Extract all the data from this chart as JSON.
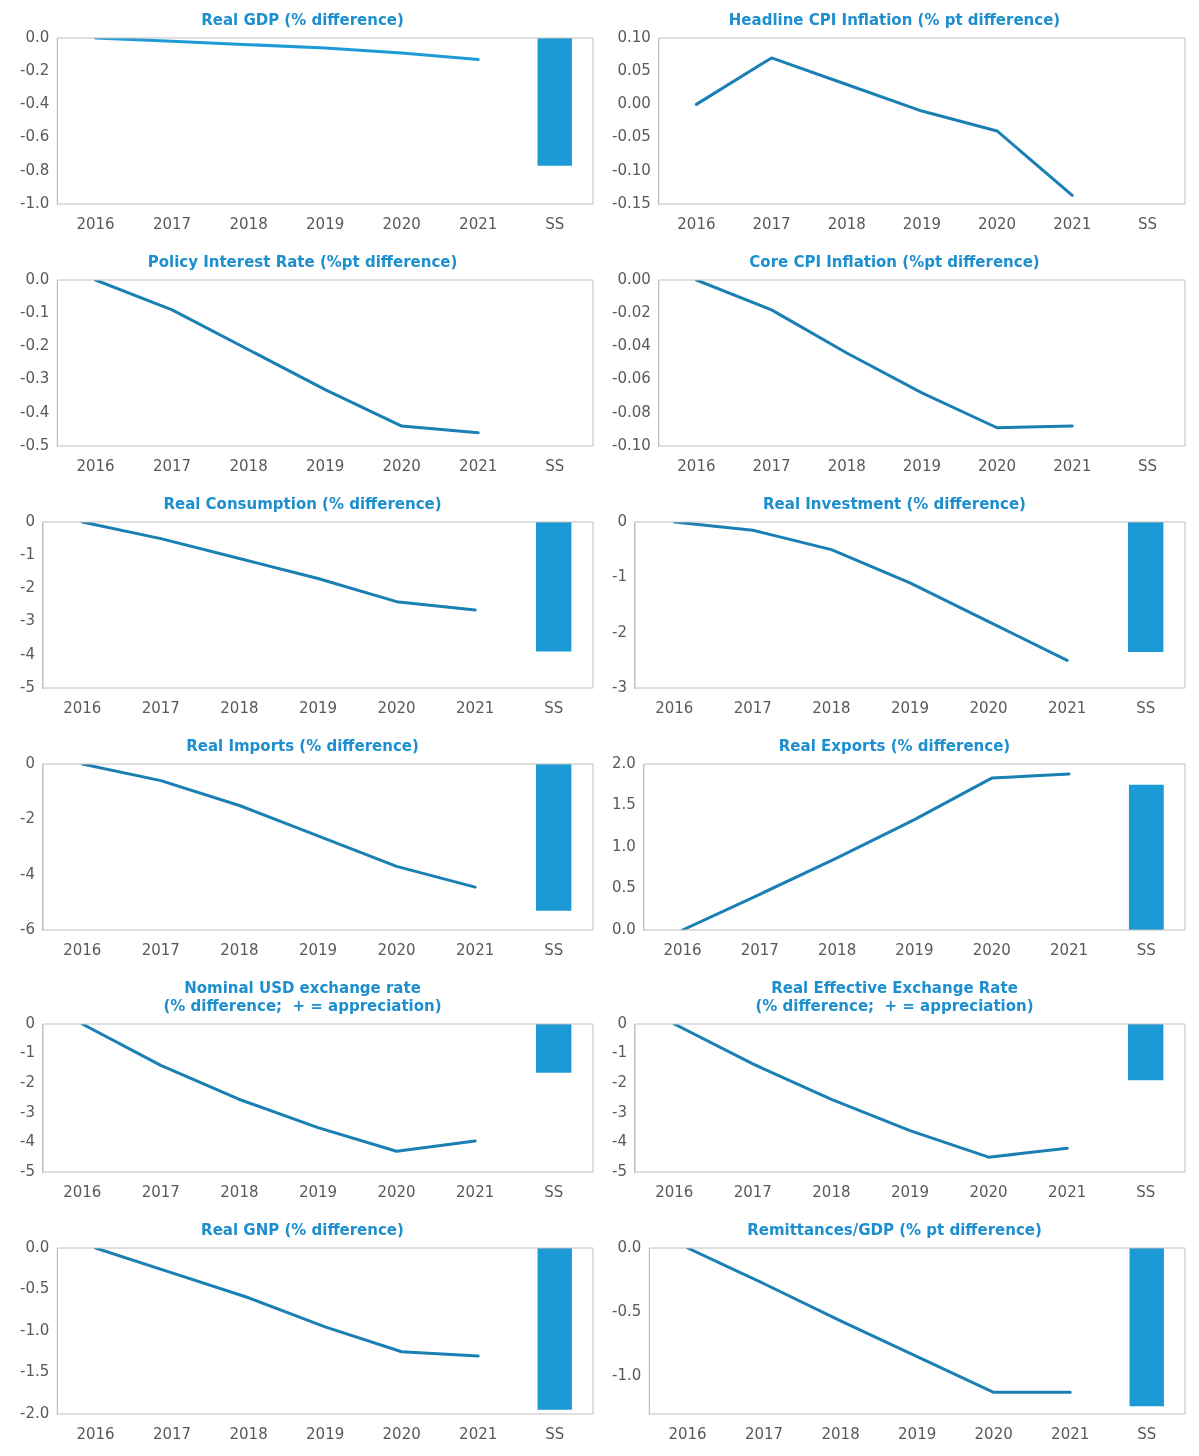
{
  "chart_data": [
    {
      "type": "line",
      "title": "Real GDP (% difference)",
      "categories": [
        "2016",
        "2017",
        "2018",
        "2019",
        "2020",
        "2021",
        "SS"
      ],
      "ylim": [
        -1.0,
        0.0
      ],
      "yticks": [
        {
          "value": 0,
          "label": "0.0"
        },
        {
          "value": -0.2,
          "label": "-0.2"
        },
        {
          "value": -0.4,
          "label": "-0.4"
        },
        {
          "value": -0.6,
          "label": "-0.6"
        },
        {
          "value": -0.8,
          "label": "-0.8"
        },
        {
          "value": -1.0,
          "label": "-1.0"
        }
      ],
      "series": [
        {
          "color": "#1e9bd7",
          "values": [
            0,
            -0.02,
            -0.04,
            -0.06,
            -0.09,
            -0.13,
            null
          ]
        },
        {
          "type": "bar",
          "color": "#1b9ad6",
          "values": [
            null,
            null,
            null,
            null,
            null,
            null,
            -0.77
          ]
        }
      ]
    },
    {
      "type": "line",
      "title": "Headline CPI Inflation (% pt difference)",
      "categories": [
        "2016",
        "2017",
        "2018",
        "2019",
        "2020",
        "2021",
        "SS"
      ],
      "ylim": [
        -0.15,
        0.1
      ],
      "yticks": [
        {
          "value": 0.1,
          "label": "0.10"
        },
        {
          "value": 0.05,
          "label": "0.05"
        },
        {
          "value": 0,
          "label": "0.00"
        },
        {
          "value": -0.05,
          "label": "-0.05"
        },
        {
          "value": -0.1,
          "label": "-0.10"
        },
        {
          "value": -0.15,
          "label": "-0.15"
        }
      ],
      "series": [
        {
          "color": "#1a80b4",
          "values": [
            0,
            0.07,
            0.03,
            -0.01,
            -0.04,
            -0.137,
            null
          ]
        }
      ]
    },
    {
      "type": "line",
      "title": "Policy Interest Rate (%pt difference)",
      "categories": [
        "2016",
        "2017",
        "2018",
        "2019",
        "2020",
        "2021",
        "SS"
      ],
      "ylim": [
        -0.5,
        0.0
      ],
      "yticks": [
        {
          "value": 0,
          "label": "0.0"
        },
        {
          "value": -0.1,
          "label": "-0.1"
        },
        {
          "value": -0.2,
          "label": "-0.2"
        },
        {
          "value": -0.3,
          "label": "-0.3"
        },
        {
          "value": -0.4,
          "label": "-0.4"
        },
        {
          "value": -0.5,
          "label": "-0.5"
        }
      ],
      "series": [
        {
          "color": "#1a80b4",
          "values": [
            0,
            -0.09,
            -0.21,
            -0.33,
            -0.44,
            -0.46,
            null
          ]
        }
      ]
    },
    {
      "type": "line",
      "title": "Core CPI Inflation (%pt difference)",
      "categories": [
        "2016",
        "2017",
        "2018",
        "2019",
        "2020",
        "2021",
        "SS"
      ],
      "ylim": [
        -0.1,
        0.0
      ],
      "yticks": [
        {
          "value": 0,
          "label": "0.00"
        },
        {
          "value": -0.02,
          "label": "-0.02"
        },
        {
          "value": -0.04,
          "label": "-0.04"
        },
        {
          "value": -0.06,
          "label": "-0.06"
        },
        {
          "value": -0.08,
          "label": "-0.08"
        },
        {
          "value": -0.1,
          "label": "-0.10"
        }
      ],
      "series": [
        {
          "color": "#1a80b4",
          "values": [
            0,
            -0.018,
            -0.044,
            -0.068,
            -0.089,
            -0.088,
            null
          ]
        }
      ]
    },
    {
      "type": "line",
      "title": "Real Consumption (% difference)",
      "categories": [
        "2016",
        "2017",
        "2018",
        "2019",
        "2020",
        "2021",
        "SS"
      ],
      "ylim": [
        -5,
        0
      ],
      "yticks": [
        0,
        -1,
        -2,
        -3,
        -4,
        -5
      ],
      "series": [
        {
          "color": "#1a80b4",
          "values": [
            0,
            -0.5,
            -1.1,
            -1.7,
            -2.4,
            -2.65,
            null
          ]
        },
        {
          "type": "bar",
          "color": "#1b9ad6",
          "values": [
            null,
            null,
            null,
            null,
            null,
            null,
            -3.9
          ]
        }
      ]
    },
    {
      "type": "line",
      "title": "Real Investment (% difference)",
      "categories": [
        "2016",
        "2017",
        "2018",
        "2019",
        "2020",
        "2021",
        "SS"
      ],
      "ylim": [
        -3,
        0
      ],
      "yticks": [
        0,
        -1,
        -2,
        -3
      ],
      "series": [
        {
          "color": "#1a80b4",
          "values": [
            0,
            -0.15,
            -0.5,
            -1.1,
            -1.8,
            -2.5,
            null
          ]
        },
        {
          "type": "bar",
          "color": "#1b9ad6",
          "values": [
            null,
            null,
            null,
            null,
            null,
            null,
            -2.35
          ]
        }
      ]
    },
    {
      "type": "line",
      "title": "Real Imports (% difference)",
      "categories": [
        "2016",
        "2017",
        "2018",
        "2019",
        "2020",
        "2021",
        "SS"
      ],
      "ylim": [
        -6,
        0
      ],
      "yticks": [
        0,
        -2,
        -4,
        -6
      ],
      "series": [
        {
          "color": "#1a80b4",
          "values": [
            0,
            -0.6,
            -1.5,
            -2.6,
            -3.7,
            -4.45,
            null
          ]
        },
        {
          "type": "bar",
          "color": "#1b9ad6",
          "values": [
            null,
            null,
            null,
            null,
            null,
            null,
            -5.3
          ]
        }
      ]
    },
    {
      "type": "line",
      "title": "Real Exports (% difference)",
      "categories": [
        "2016",
        "2017",
        "2018",
        "2019",
        "2020",
        "2021",
        "SS"
      ],
      "ylim": [
        0.0,
        2.0
      ],
      "yticks": [
        {
          "value": 2,
          "label": "2.0"
        },
        {
          "value": 1.5,
          "label": "1.5"
        },
        {
          "value": 1,
          "label": "1.0"
        },
        {
          "value": 0.5,
          "label": "0.5"
        },
        {
          "value": 0,
          "label": "0.0"
        }
      ],
      "series": [
        {
          "color": "#1a80b4",
          "values": [
            0,
            0.43,
            0.87,
            1.33,
            1.83,
            1.88,
            null
          ]
        },
        {
          "type": "bar",
          "color": "#1b9ad6",
          "values": [
            null,
            null,
            null,
            null,
            null,
            null,
            1.75
          ]
        }
      ]
    },
    {
      "type": "line",
      "title": "Nominal USD exchange rate\n(% difference;  + = appreciation)",
      "categories": [
        "2016",
        "2017",
        "2018",
        "2019",
        "2020",
        "2021",
        "SS"
      ],
      "ylim": [
        -5,
        0
      ],
      "yticks": [
        0,
        -1,
        -2,
        -3,
        -4,
        -5
      ],
      "series": [
        {
          "color": "#1a80b4",
          "values": [
            0,
            -1.4,
            -2.55,
            -3.5,
            -4.3,
            -3.95,
            null
          ]
        },
        {
          "type": "bar",
          "color": "#1b9ad6",
          "values": [
            null,
            null,
            null,
            null,
            null,
            null,
            -1.65
          ]
        }
      ]
    },
    {
      "type": "line",
      "title": "Real Effective Exchange Rate\n(% difference;  + = appreciation)",
      "categories": [
        "2016",
        "2017",
        "2018",
        "2019",
        "2020",
        "2021",
        "SS"
      ],
      "ylim": [
        -5,
        0
      ],
      "yticks": [
        0,
        -1,
        -2,
        -3,
        -4,
        -5
      ],
      "series": [
        {
          "color": "#1a80b4",
          "values": [
            0,
            -1.35,
            -2.55,
            -3.6,
            -4.5,
            -4.2,
            null
          ]
        },
        {
          "type": "bar",
          "color": "#1b9ad6",
          "values": [
            null,
            null,
            null,
            null,
            null,
            null,
            -1.9
          ]
        }
      ]
    },
    {
      "type": "line",
      "title": "Real GNP (% difference)",
      "categories": [
        "2016",
        "2017",
        "2018",
        "2019",
        "2020",
        "2021",
        "SS"
      ],
      "ylim": [
        -2.0,
        0.0
      ],
      "yticks": [
        {
          "value": 0,
          "label": "0.0"
        },
        {
          "value": -0.5,
          "label": "-0.5"
        },
        {
          "value": -1,
          "label": "-1.0"
        },
        {
          "value": -1.5,
          "label": "-1.5"
        },
        {
          "value": -2,
          "label": "-2.0"
        }
      ],
      "series": [
        {
          "color": "#1a80b4",
          "values": [
            0,
            -0.3,
            -0.6,
            -0.95,
            -1.25,
            -1.3,
            null
          ]
        },
        {
          "type": "bar",
          "color": "#1b9ad6",
          "values": [
            null,
            null,
            null,
            null,
            null,
            null,
            -1.95
          ]
        }
      ]
    },
    {
      "type": "line",
      "title": "Remittances/GDP (% pt difference)",
      "categories": [
        "2016",
        "2017",
        "2018",
        "2019",
        "2020",
        "2021",
        "SS"
      ],
      "ylim": [
        -1.3,
        0.0
      ],
      "yticks": [
        {
          "value": 0,
          "label": "0.0"
        },
        {
          "value": -0.5,
          "label": "-0.5"
        },
        {
          "value": -1,
          "label": "-1.0"
        }
      ],
      "series": [
        {
          "color": "#1a80b4",
          "values": [
            0,
            -0.28,
            -0.57,
            -0.85,
            -1.13,
            -1.13,
            null
          ]
        },
        {
          "type": "bar",
          "color": "#1b9ad6",
          "values": [
            null,
            null,
            null,
            null,
            null,
            null,
            -1.24
          ]
        }
      ]
    }
  ]
}
